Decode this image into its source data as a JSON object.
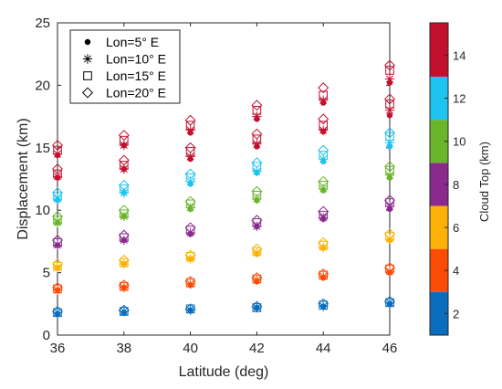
{
  "chart_data": {
    "type": "scatter",
    "title": "",
    "xlabel": "Latitude (deg)",
    "ylabel": "Displacement (km)",
    "xlim": [
      36,
      46
    ],
    "ylim": [
      0,
      25
    ],
    "xticks": [
      36,
      38,
      40,
      42,
      44,
      46
    ],
    "yticks": [
      0,
      5,
      10,
      15,
      20,
      25
    ],
    "grid": false,
    "legend_position": "top-left",
    "series": [
      {
        "name": "Lon=5° E",
        "marker": "dot",
        "x_offset": 0.0
      },
      {
        "name": "Lon=10° E",
        "marker": "asterisk",
        "x_offset": 0.0
      },
      {
        "name": "Lon=15° E",
        "marker": "square",
        "x_offset": 0.0
      },
      {
        "name": "Lon=20° E",
        "marker": "diamond",
        "x_offset": 0.0
      }
    ],
    "latitudes": [
      36,
      38,
      40,
      42,
      44,
      46
    ],
    "cloud_tops_km": [
      1,
      3,
      5,
      7,
      9,
      11,
      13,
      15
    ],
    "values": {
      "Lon=5° E": [
        [
          1.7,
          3.6,
          5.4,
          7.2,
          9.0,
          10.8,
          12.6,
          14.4
        ],
        [
          1.8,
          3.8,
          5.7,
          7.6,
          9.5,
          11.4,
          13.3,
          15.2
        ],
        [
          2.0,
          4.0,
          6.1,
          8.1,
          10.1,
          12.1,
          14.1,
          16.2
        ],
        [
          2.2,
          4.3,
          6.5,
          8.7,
          10.8,
          13.0,
          15.1,
          17.3
        ],
        [
          2.3,
          4.6,
          7.0,
          9.3,
          11.6,
          13.9,
          16.3,
          18.6
        ],
        [
          2.5,
          5.0,
          7.6,
          10.1,
          12.6,
          15.1,
          17.6,
          20.2
        ]
      ],
      "Lon=10° E": [
        [
          1.8,
          3.6,
          5.4,
          7.2,
          9.0,
          10.9,
          12.7,
          14.5
        ],
        [
          1.9,
          3.8,
          5.7,
          7.6,
          9.5,
          11.4,
          13.3,
          15.2
        ],
        [
          2.0,
          4.1,
          6.1,
          8.2,
          10.2,
          12.3,
          14.3,
          16.4
        ],
        [
          2.2,
          4.4,
          6.6,
          8.7,
          10.9,
          13.1,
          15.3,
          17.5
        ],
        [
          2.3,
          4.7,
          7.0,
          9.4,
          11.7,
          14.1,
          16.4,
          18.8
        ],
        [
          2.6,
          5.1,
          7.7,
          10.3,
          12.8,
          15.4,
          18.0,
          20.5
        ]
      ],
      "Lon=15° E": [
        [
          1.8,
          3.7,
          5.5,
          7.4,
          9.2,
          11.1,
          12.9,
          14.8
        ],
        [
          1.9,
          3.9,
          5.8,
          7.8,
          9.7,
          11.7,
          13.6,
          15.6
        ],
        [
          2.1,
          4.2,
          6.3,
          8.4,
          10.5,
          12.6,
          14.7,
          16.8
        ],
        [
          2.2,
          4.5,
          6.7,
          9.0,
          11.2,
          13.5,
          15.7,
          18.0
        ],
        [
          2.4,
          4.8,
          7.2,
          9.6,
          12.0,
          14.4,
          16.8,
          19.2
        ],
        [
          2.6,
          5.3,
          7.9,
          10.6,
          13.2,
          15.9,
          18.5,
          21.2
        ]
      ],
      "Lon=20° E": [
        [
          1.9,
          3.8,
          5.7,
          7.6,
          9.5,
          11.4,
          13.3,
          15.2
        ],
        [
          2.0,
          4.0,
          6.0,
          8.0,
          10.0,
          12.0,
          14.0,
          16.0
        ],
        [
          2.1,
          4.3,
          6.4,
          8.6,
          10.7,
          12.9,
          15.0,
          17.2
        ],
        [
          2.3,
          4.6,
          6.9,
          9.2,
          11.5,
          13.8,
          16.1,
          18.4
        ],
        [
          2.5,
          4.9,
          7.4,
          9.9,
          12.3,
          14.8,
          17.3,
          19.8
        ],
        [
          2.7,
          5.4,
          8.1,
          10.8,
          13.5,
          16.2,
          18.9,
          21.6
        ]
      ]
    },
    "colorbar": {
      "label": "Cloud Top (km)",
      "range": [
        1,
        15.5
      ],
      "ticks": [
        2,
        4,
        6,
        8,
        10,
        12,
        14
      ],
      "bands": [
        {
          "from": 1,
          "to": 3,
          "color": "#0a6dbd"
        },
        {
          "from": 3,
          "to": 5,
          "color": "#fb4b05"
        },
        {
          "from": 5,
          "to": 7,
          "color": "#fbb205"
        },
        {
          "from": 7,
          "to": 9,
          "color": "#8b2a8e"
        },
        {
          "from": 9,
          "to": 11,
          "color": "#6ab52a"
        },
        {
          "from": 11,
          "to": 13,
          "color": "#1ec3f0"
        },
        {
          "from": 13,
          "to": 15.5,
          "color": "#c4102f"
        }
      ]
    }
  }
}
